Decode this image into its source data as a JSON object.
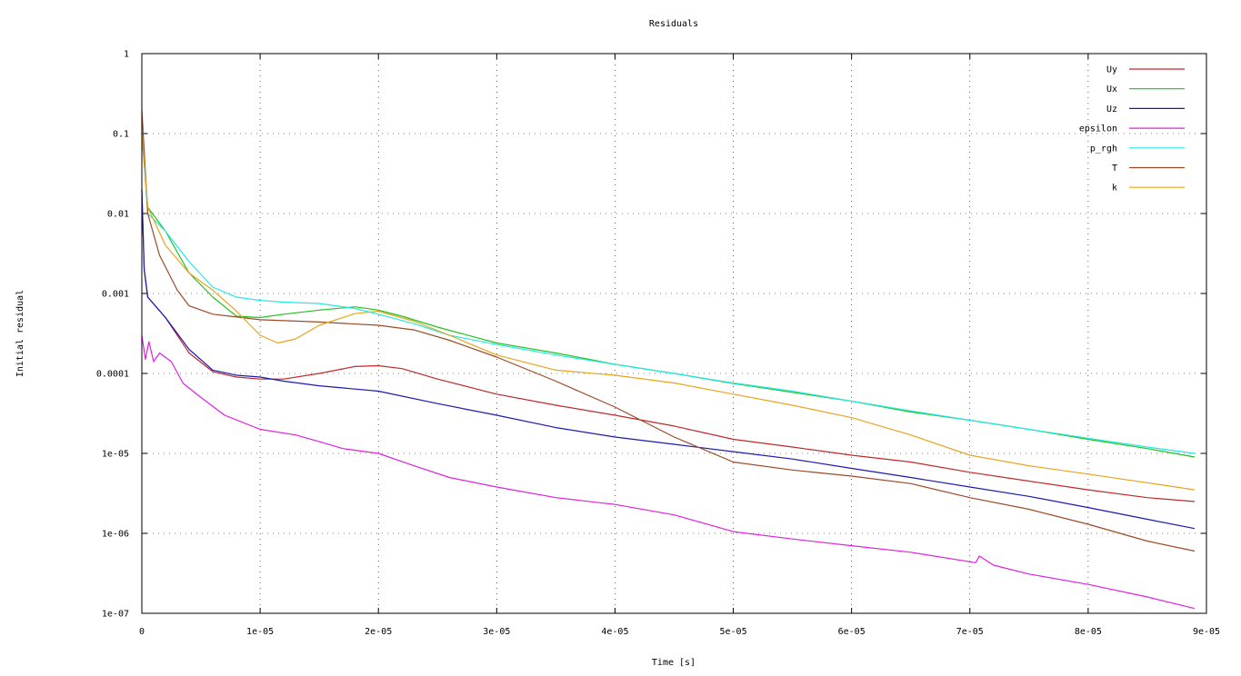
{
  "chart_data": {
    "type": "line",
    "title": "Residuals",
    "xlabel": "Time [s]",
    "ylabel": "Initial residual",
    "xlim": [
      0,
      9e-05
    ],
    "ylim": [
      1e-07,
      1
    ],
    "y_scale": "log",
    "grid": true,
    "legend_position": "top-right",
    "x_ticks": [
      {
        "value": 0,
        "label": "0"
      },
      {
        "value": 1e-05,
        "label": "1e-05"
      },
      {
        "value": 2e-05,
        "label": "2e-05"
      },
      {
        "value": 3e-05,
        "label": "3e-05"
      },
      {
        "value": 4e-05,
        "label": "4e-05"
      },
      {
        "value": 5e-05,
        "label": "5e-05"
      },
      {
        "value": 6e-05,
        "label": "6e-05"
      },
      {
        "value": 7e-05,
        "label": "7e-05"
      },
      {
        "value": 8e-05,
        "label": "8e-05"
      },
      {
        "value": 9e-05,
        "label": "9e-05"
      }
    ],
    "y_ticks": [
      {
        "value": 1,
        "label": "1"
      },
      {
        "value": 0.1,
        "label": "0.1"
      },
      {
        "value": 0.01,
        "label": "0.01"
      },
      {
        "value": 0.001,
        "label": "0.001"
      },
      {
        "value": 0.0001,
        "label": "0.0001"
      },
      {
        "value": 1e-05,
        "label": "1e-05"
      },
      {
        "value": 1e-06,
        "label": "1e-06"
      },
      {
        "value": 1e-07,
        "label": "1e-07"
      }
    ],
    "series": [
      {
        "name": "Uy",
        "color": "#c0282a",
        "points": [
          [
            0,
            0.02
          ],
          [
            2e-07,
            0.002
          ],
          [
            5e-07,
            0.0009
          ],
          [
            2e-06,
            0.0005
          ],
          [
            4e-06,
            0.00018
          ],
          [
            6e-06,
            0.000105
          ],
          [
            8e-06,
            9e-05
          ],
          [
            1e-05,
            8.5e-05
          ],
          [
            1.2e-05,
            8.5e-05
          ],
          [
            1.5e-05,
            0.0001
          ],
          [
            1.8e-05,
            0.000122
          ],
          [
            2e-05,
            0.000125
          ],
          [
            2.2e-05,
            0.000115
          ],
          [
            2.5e-05,
            8.5e-05
          ],
          [
            3e-05,
            5.5e-05
          ],
          [
            3.5e-05,
            4e-05
          ],
          [
            4e-05,
            3e-05
          ],
          [
            4.5e-05,
            2.2e-05
          ],
          [
            5e-05,
            1.5e-05
          ],
          [
            5.5e-05,
            1.2e-05
          ],
          [
            6e-05,
            9.5e-06
          ],
          [
            6.5e-05,
            7.8e-06
          ],
          [
            7e-05,
            5.8e-06
          ],
          [
            7.5e-05,
            4.5e-06
          ],
          [
            8e-05,
            3.5e-06
          ],
          [
            8.5e-05,
            2.8e-06
          ],
          [
            8.9e-05,
            2.5e-06
          ]
        ]
      },
      {
        "name": "Ux",
        "color": "#1fc31f",
        "points": [
          [
            0,
            0.1
          ],
          [
            5e-07,
            0.012
          ],
          [
            2e-06,
            0.006
          ],
          [
            4e-06,
            0.0018
          ],
          [
            6e-06,
            0.0009
          ],
          [
            8e-06,
            0.00052
          ],
          [
            1e-05,
            0.0005
          ],
          [
            1.2e-05,
            0.00055
          ],
          [
            1.5e-05,
            0.00062
          ],
          [
            1.8e-05,
            0.00068
          ],
          [
            2e-05,
            0.00062
          ],
          [
            2.2e-05,
            0.00052
          ],
          [
            2.5e-05,
            0.00038
          ],
          [
            3e-05,
            0.00024
          ],
          [
            3.5e-05,
            0.00018
          ],
          [
            4e-05,
            0.00013
          ],
          [
            4.5e-05,
            0.0001
          ],
          [
            5e-05,
            7.5e-05
          ],
          [
            5.5e-05,
            5.8e-05
          ],
          [
            6e-05,
            4.5e-05
          ],
          [
            6.5e-05,
            3.3e-05
          ],
          [
            7e-05,
            2.6e-05
          ],
          [
            7.5e-05,
            2e-05
          ],
          [
            8e-05,
            1.5e-05
          ],
          [
            8.5e-05,
            1.15e-05
          ],
          [
            8.9e-05,
            9e-06
          ]
        ]
      },
      {
        "name": "Uz",
        "color": "#1a1ab0",
        "points": [
          [
            0,
            0.02
          ],
          [
            2e-07,
            0.002
          ],
          [
            5e-07,
            0.0009
          ],
          [
            2e-06,
            0.0005
          ],
          [
            4e-06,
            0.0002
          ],
          [
            6e-06,
            0.00011
          ],
          [
            8e-06,
            9.5e-05
          ],
          [
            1e-05,
            9e-05
          ],
          [
            1.2e-05,
            8e-05
          ],
          [
            1.5e-05,
            7e-05
          ],
          [
            2e-05,
            6e-05
          ],
          [
            2.5e-05,
            4.2e-05
          ],
          [
            3e-05,
            3e-05
          ],
          [
            3.5e-05,
            2.1e-05
          ],
          [
            4e-05,
            1.6e-05
          ],
          [
            4.5e-05,
            1.3e-05
          ],
          [
            5e-05,
            1.05e-05
          ],
          [
            5.5e-05,
            8.5e-06
          ],
          [
            6e-05,
            6.5e-06
          ],
          [
            6.5e-05,
            5e-06
          ],
          [
            7e-05,
            3.8e-06
          ],
          [
            7.5e-05,
            2.9e-06
          ],
          [
            8e-05,
            2.1e-06
          ],
          [
            8.5e-05,
            1.5e-06
          ],
          [
            8.9e-05,
            1.15e-06
          ]
        ]
      },
      {
        "name": "epsilon",
        "color": "#e020e0",
        "points": [
          [
            0,
            0.0003
          ],
          [
            3e-07,
            0.00015
          ],
          [
            6e-07,
            0.00025
          ],
          [
            1e-06,
            0.00014
          ],
          [
            1.5e-06,
            0.00018
          ],
          [
            2.5e-06,
            0.00014
          ],
          [
            3.5e-06,
            7.5e-05
          ],
          [
            5e-06,
            5e-05
          ],
          [
            7e-06,
            3e-05
          ],
          [
            1e-05,
            2e-05
          ],
          [
            1.3e-05,
            1.7e-05
          ],
          [
            1.5e-05,
            1.4e-05
          ],
          [
            1.7e-05,
            1.15e-05
          ],
          [
            2e-05,
            1e-05
          ],
          [
            2.3e-05,
            7e-06
          ],
          [
            2.6e-05,
            5e-06
          ],
          [
            3e-05,
            3.8e-06
          ],
          [
            3.5e-05,
            2.8e-06
          ],
          [
            4e-05,
            2.3e-06
          ],
          [
            4.5e-05,
            1.7e-06
          ],
          [
            5e-05,
            1.05e-06
          ],
          [
            5.5e-05,
            8.5e-07
          ],
          [
            6e-05,
            7e-07
          ],
          [
            6.5e-05,
            5.8e-07
          ],
          [
            7.05e-05,
            4.3e-07
          ],
          [
            7.08e-05,
            5.2e-07
          ],
          [
            7.2e-05,
            4e-07
          ],
          [
            7.5e-05,
            3.1e-07
          ],
          [
            8e-05,
            2.3e-07
          ],
          [
            8.5e-05,
            1.6e-07
          ],
          [
            8.9e-05,
            1.15e-07
          ]
        ]
      },
      {
        "name": "p_rgh",
        "color": "#25e8e8",
        "points": [
          [
            0,
            0.1
          ],
          [
            5e-07,
            0.01
          ],
          [
            2e-06,
            0.006
          ],
          [
            4e-06,
            0.0025
          ],
          [
            6e-06,
            0.0012
          ],
          [
            8e-06,
            0.0009
          ],
          [
            1e-05,
            0.00082
          ],
          [
            1.2e-05,
            0.00078
          ],
          [
            1.5e-05,
            0.00075
          ],
          [
            1.8e-05,
            0.00065
          ],
          [
            2e-05,
            0.00055
          ],
          [
            2.3e-05,
            0.00042
          ],
          [
            2.6e-05,
            0.0003
          ],
          [
            3e-05,
            0.00023
          ],
          [
            3.5e-05,
            0.00017
          ],
          [
            4e-05,
            0.00013
          ],
          [
            4.5e-05,
            0.0001
          ],
          [
            5e-05,
            7.6e-05
          ],
          [
            5.5e-05,
            6e-05
          ],
          [
            6e-05,
            4.5e-05
          ],
          [
            6.5e-05,
            3.4e-05
          ],
          [
            7e-05,
            2.6e-05
          ],
          [
            7.5e-05,
            2e-05
          ],
          [
            8e-05,
            1.55e-05
          ],
          [
            8.5e-05,
            1.2e-05
          ],
          [
            8.9e-05,
            1e-05
          ]
        ]
      },
      {
        "name": "T",
        "color": "#9c4a25",
        "points": [
          [
            0,
            0.2
          ],
          [
            5e-07,
            0.01
          ],
          [
            1.5e-06,
            0.003
          ],
          [
            3e-06,
            0.0011
          ],
          [
            4e-06,
            0.0007
          ],
          [
            6e-06,
            0.00055
          ],
          [
            1e-05,
            0.00047
          ],
          [
            1.5e-05,
            0.00044
          ],
          [
            2e-05,
            0.0004
          ],
          [
            2.3e-05,
            0.00035
          ],
          [
            2.6e-05,
            0.00026
          ],
          [
            3e-05,
            0.00016
          ],
          [
            3.5e-05,
            8e-05
          ],
          [
            4e-05,
            3.8e-05
          ],
          [
            4.5e-05,
            1.6e-05
          ],
          [
            5e-05,
            7.8e-06
          ],
          [
            5.5e-05,
            6.2e-06
          ],
          [
            6e-05,
            5.2e-06
          ],
          [
            6.5e-05,
            4.2e-06
          ],
          [
            7e-05,
            2.8e-06
          ],
          [
            7.5e-05,
            2e-06
          ],
          [
            8e-05,
            1.3e-06
          ],
          [
            8.5e-05,
            8e-07
          ],
          [
            8.9e-05,
            6e-07
          ]
        ]
      },
      {
        "name": "k",
        "color": "#e8a41d",
        "points": [
          [
            0,
            0.1
          ],
          [
            5e-07,
            0.012
          ],
          [
            2e-06,
            0.004
          ],
          [
            4e-06,
            0.0018
          ],
          [
            6e-06,
            0.0011
          ],
          [
            8e-06,
            0.0006
          ],
          [
            1e-05,
            0.0003
          ],
          [
            1.15e-05,
            0.00024
          ],
          [
            1.3e-05,
            0.00027
          ],
          [
            1.5e-05,
            0.0004
          ],
          [
            1.8e-05,
            0.00056
          ],
          [
            2e-05,
            0.0006
          ],
          [
            2.3e-05,
            0.00045
          ],
          [
            2.6e-05,
            0.0003
          ],
          [
            3e-05,
            0.00017
          ],
          [
            3.5e-05,
            0.00011
          ],
          [
            4e-05,
            9.5e-05
          ],
          [
            4.5e-05,
            7.6e-05
          ],
          [
            5e-05,
            5.5e-05
          ],
          [
            5.5e-05,
            4e-05
          ],
          [
            6e-05,
            2.8e-05
          ],
          [
            6.5e-05,
            1.7e-05
          ],
          [
            7e-05,
            9.5e-06
          ],
          [
            7.5e-05,
            7e-06
          ],
          [
            8e-05,
            5.5e-06
          ],
          [
            8.5e-05,
            4.3e-06
          ],
          [
            8.9e-05,
            3.5e-06
          ]
        ]
      }
    ]
  }
}
